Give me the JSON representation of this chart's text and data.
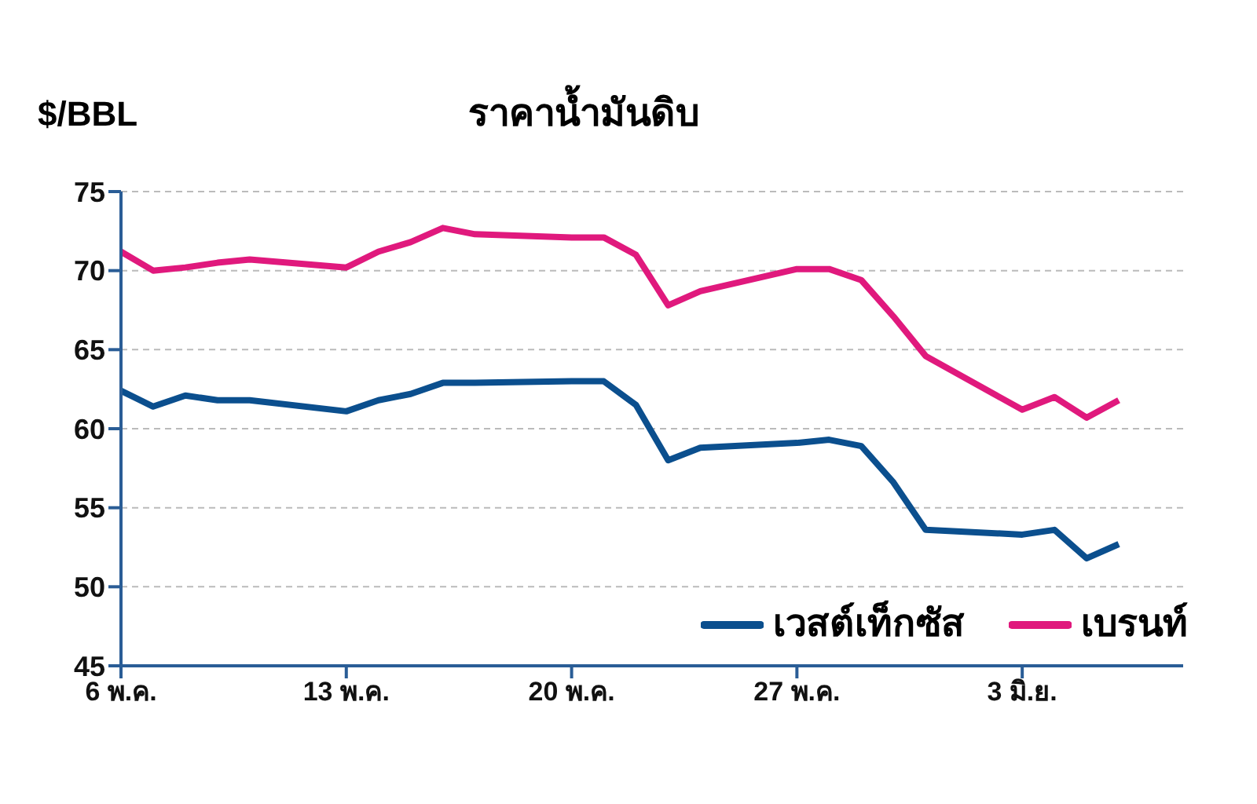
{
  "chart_data": {
    "type": "line",
    "title": "ราคาน้ำมันดิบ",
    "ylabel": "$/BBL",
    "xlim": [
      "--05-06",
      "--06-08"
    ],
    "xticks": [
      {
        "value": "--05-06",
        "label": "6 พ.ค."
      },
      {
        "value": "--05-13",
        "label": "13 พ.ค."
      },
      {
        "value": "--05-20",
        "label": "20 พ.ค."
      },
      {
        "value": "--05-27",
        "label": "27 พ.ค."
      },
      {
        "value": "--06-03",
        "label": "3 มิ.ย."
      }
    ],
    "ylim": [
      45,
      75
    ],
    "yticks": [
      45,
      50,
      55,
      60,
      65,
      70,
      75
    ],
    "grid": "y",
    "legend": "bottom right",
    "marker": "none",
    "line_style": "solid",
    "x": [
      "--05-06",
      "--05-07",
      "--05-08",
      "--05-09",
      "--05-10",
      "--05-13",
      "--05-14",
      "--05-15",
      "--05-16",
      "--05-17",
      "--05-20",
      "--05-21",
      "--05-22",
      "--05-23",
      "--05-24",
      "--05-27",
      "--05-28",
      "--05-29",
      "--05-30",
      "--05-31",
      "--06-03",
      "--06-04",
      "--06-05",
      "--06-06"
    ],
    "series": [
      {
        "name": "เวสต์เท็กซัส",
        "color": "#0b4f8e",
        "values": [
          62.4,
          61.4,
          62.1,
          61.8,
          61.8,
          61.1,
          61.8,
          62.2,
          62.9,
          62.9,
          63.0,
          63.0,
          61.5,
          58.0,
          58.8,
          59.1,
          59.3,
          58.9,
          56.6,
          53.6,
          53.3,
          53.6,
          51.8,
          52.7
        ]
      },
      {
        "name": "เบรนท์",
        "color": "#e0197d",
        "values": [
          71.2,
          70.0,
          70.2,
          70.5,
          70.7,
          70.2,
          71.2,
          71.8,
          72.7,
          72.3,
          72.1,
          72.1,
          71.0,
          67.8,
          68.7,
          70.1,
          70.1,
          69.4,
          67.1,
          64.6,
          61.2,
          62.0,
          60.7,
          61.8
        ]
      }
    ]
  }
}
